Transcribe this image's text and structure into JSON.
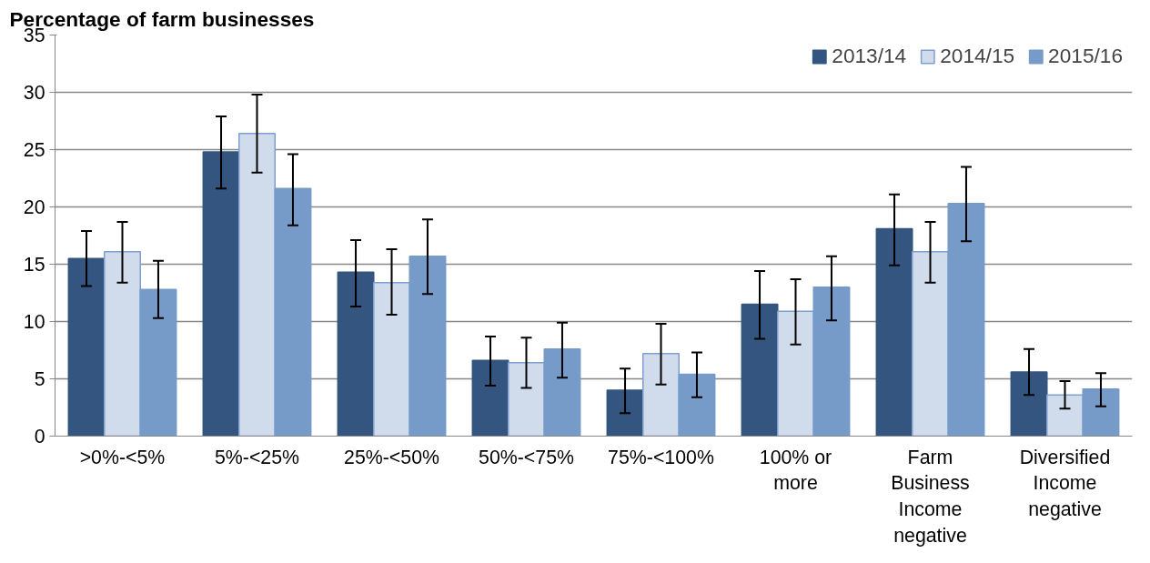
{
  "chart_data": {
    "type": "bar",
    "ylabel": "Percentage of farm businesses",
    "categories": [
      ">0%-<5%",
      "5%-<25%",
      "25%-<50%",
      "50%-<75%",
      "75%-<100%",
      "100% or more",
      "Farm Business Income negative",
      "Diversified Income negative"
    ],
    "series": [
      {
        "name": "2013/14",
        "color": "#34557f",
        "values": [
          15.5,
          24.8,
          14.3,
          6.6,
          4.0,
          11.5,
          18.1,
          5.6
        ],
        "errors": [
          [
            13.1,
            17.9
          ],
          [
            21.6,
            27.9
          ],
          [
            11.3,
            17.1
          ],
          [
            4.4,
            8.7
          ],
          [
            2.0,
            5.9
          ],
          [
            8.5,
            14.4
          ],
          [
            14.9,
            21.1
          ],
          [
            3.6,
            7.6
          ]
        ]
      },
      {
        "name": "2014/15",
        "color": "#d0dcec",
        "values": [
          16.1,
          26.4,
          13.4,
          6.4,
          7.2,
          10.9,
          16.1,
          3.6
        ],
        "errors": [
          [
            13.4,
            18.7
          ],
          [
            23.0,
            29.8
          ],
          [
            10.6,
            16.3
          ],
          [
            4.2,
            8.6
          ],
          [
            4.5,
            9.8
          ],
          [
            8.0,
            13.7
          ],
          [
            13.4,
            18.7
          ],
          [
            2.4,
            4.8
          ]
        ]
      },
      {
        "name": "2015/16",
        "color": "#779bc9",
        "values": [
          12.8,
          21.6,
          15.7,
          7.6,
          5.4,
          13.0,
          20.3,
          4.1
        ],
        "errors": [
          [
            10.3,
            15.3
          ],
          [
            18.4,
            24.6
          ],
          [
            12.4,
            18.9
          ],
          [
            5.1,
            9.9
          ],
          [
            3.4,
            7.3
          ],
          [
            10.1,
            15.7
          ],
          [
            17.0,
            23.5
          ],
          [
            2.6,
            5.5
          ]
        ]
      }
    ],
    "ylim": [
      0,
      35
    ],
    "yticks": [
      0,
      5,
      10,
      15,
      20,
      25,
      30,
      35
    ],
    "grid": "y",
    "legend": "top right"
  }
}
